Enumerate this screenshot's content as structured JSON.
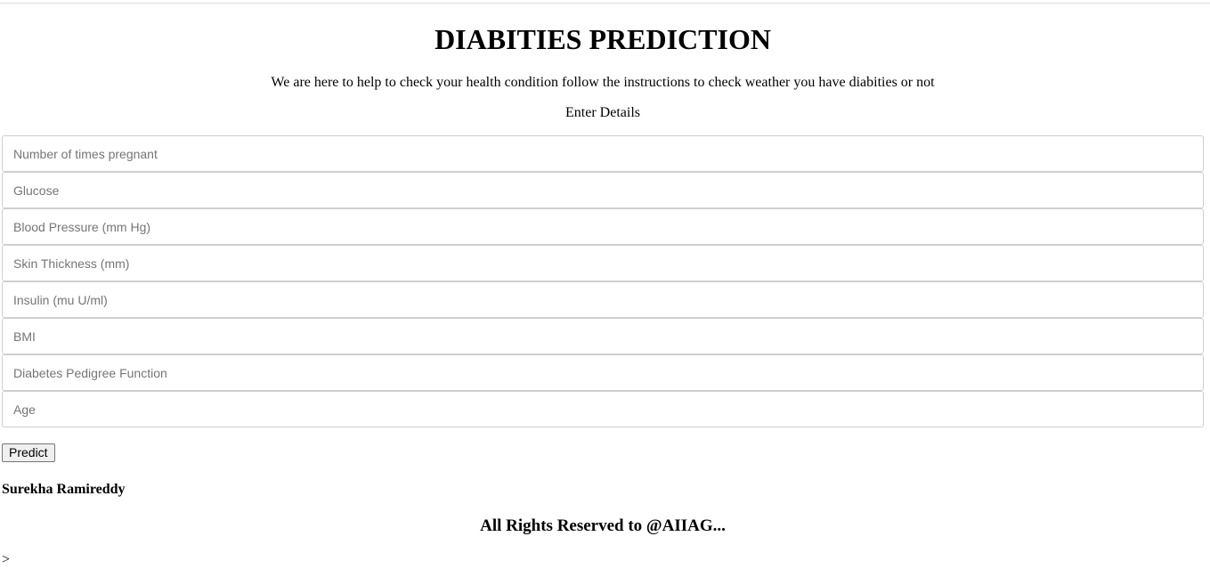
{
  "header": {
    "title": "DIABITIES PREDICTION",
    "tagline": "We are here to help to check your health condition follow the instructions to check weather you have diabities or not",
    "form_heading": "Enter Details"
  },
  "form": {
    "fields": [
      {
        "name": "pregnancies-field",
        "placeholder": "Number of times pregnant",
        "value": ""
      },
      {
        "name": "glucose-field",
        "placeholder": "Glucose",
        "value": ""
      },
      {
        "name": "blood-pressure-field",
        "placeholder": "Blood Pressure (mm Hg)",
        "value": ""
      },
      {
        "name": "skin-thickness-field",
        "placeholder": "Skin Thickness (mm)",
        "value": ""
      },
      {
        "name": "insulin-field",
        "placeholder": "Insulin (mu U/ml)",
        "value": ""
      },
      {
        "name": "bmi-field",
        "placeholder": "BMI",
        "value": ""
      },
      {
        "name": "pedigree-field",
        "placeholder": "Diabetes Pedigree Function",
        "value": ""
      },
      {
        "name": "age-field",
        "placeholder": "Age",
        "value": ""
      }
    ],
    "submit_label": "Predict"
  },
  "footer": {
    "author": "Surekha Ramireddy",
    "rights": "All Rights Reserved to @AIIAG...",
    "stray_text": ">"
  }
}
